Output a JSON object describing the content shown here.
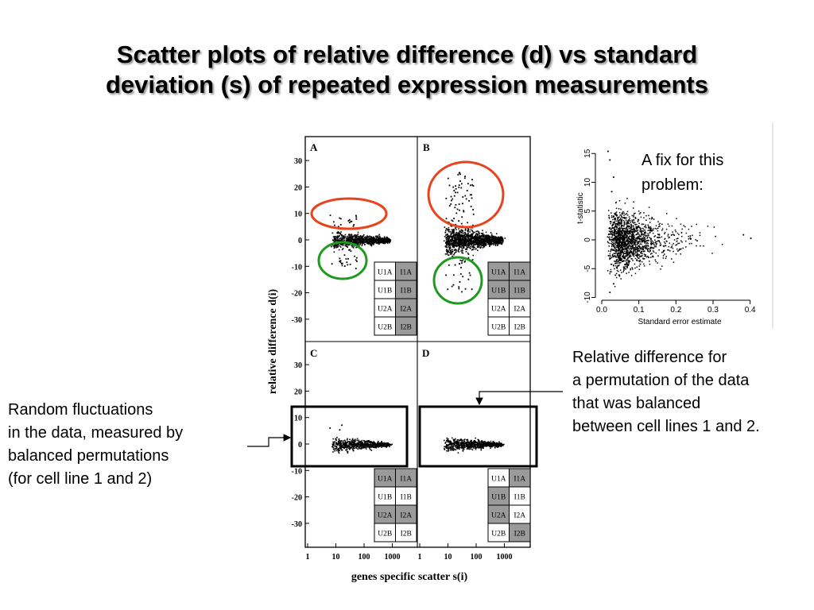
{
  "title": {
    "line1": "Scatter plots of relative difference (d) vs standard",
    "line2": "deviation (s) of repeated expression measurements"
  },
  "annotations": {
    "fix": [
      "A fix for this",
      "problem:"
    ],
    "permutation": [
      "Relative difference for",
      "a permutation of the data",
      "that was balanced",
      "between cell lines 1 and 2."
    ],
    "random": [
      "Random fluctuations",
      "in the data, measured by",
      "balanced permutations",
      "(for cell line 1 and 2)"
    ]
  },
  "colors": {
    "red_ellipse": "#e8431c",
    "green_ellipse": "#1f9a1f",
    "frame": "#000000"
  },
  "chart_data": [
    {
      "type": "scatter",
      "ylabel": "relative difference d(i)",
      "xlabel": "genes specific scatter s(i)",
      "x_ticks": [
        "1",
        "10",
        "100",
        "1000"
      ],
      "y_ticks": [
        30,
        20,
        10,
        0,
        -10,
        -20,
        -30
      ],
      "ylim": [
        -35,
        35
      ],
      "x_scale": "log",
      "panels": [
        {
          "label": "A",
          "design": [
            [
              "U1A",
              "I1A"
            ],
            [
              "U1B",
              "I1B"
            ],
            [
              "U2A",
              "I2A"
            ],
            [
              "U2B",
              "I2B"
            ]
          ],
          "shaded": [
            [
              false,
              true
            ],
            [
              false,
              true
            ],
            [
              false,
              true
            ],
            [
              false,
              true
            ]
          ]
        },
        {
          "label": "B",
          "design": [
            [
              "U1A",
              "I1A"
            ],
            [
              "U1B",
              "I1B"
            ],
            [
              "U2A",
              "I2A"
            ],
            [
              "U2B",
              "I2B"
            ]
          ],
          "shaded": [
            [
              true,
              true
            ],
            [
              true,
              true
            ],
            [
              false,
              false
            ],
            [
              false,
              false
            ]
          ]
        },
        {
          "label": "C",
          "design": [
            [
              "U1A",
              "I1A"
            ],
            [
              "U1B",
              "I1B"
            ],
            [
              "U2A",
              "I2A"
            ],
            [
              "U2B",
              "I2B"
            ]
          ],
          "shaded": [
            [
              true,
              true
            ],
            [
              false,
              false
            ],
            [
              true,
              true
            ],
            [
              false,
              false
            ]
          ]
        },
        {
          "label": "D",
          "design": [
            [
              "U1A",
              "I1A"
            ],
            [
              "U1B",
              "I1B"
            ],
            [
              "U2A",
              "I2A"
            ],
            [
              "U2B",
              "I2B"
            ]
          ],
          "shaded": [
            [
              false,
              true
            ],
            [
              true,
              false
            ],
            [
              true,
              false
            ],
            [
              false,
              true
            ]
          ]
        }
      ]
    },
    {
      "type": "scatter",
      "xlabel": "Standard error estimate",
      "ylabel": "t-statistic",
      "x_ticks": [
        "0.0",
        "0.1",
        "0.2",
        "0.3",
        "0.4"
      ],
      "y_ticks": [
        "-10",
        "-5",
        "0",
        "5",
        "10",
        "15"
      ],
      "xlim": [
        0,
        0.42
      ],
      "ylim": [
        -10,
        16
      ]
    }
  ]
}
